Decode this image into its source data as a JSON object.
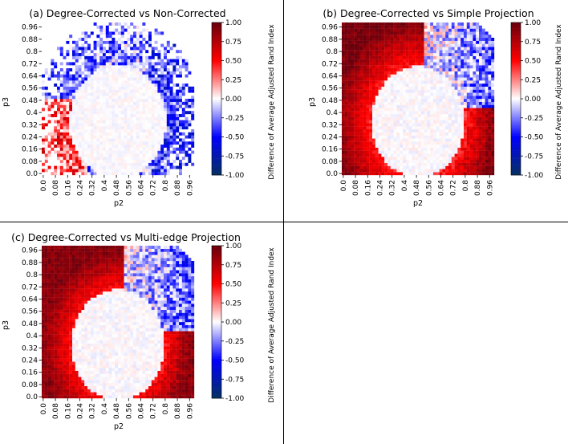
{
  "colors": {
    "cmap": [
      "#053061",
      "#0000ff",
      "#ffffff",
      "#ff0000",
      "#67000d"
    ],
    "axis": "#000000",
    "divider": "#000000"
  },
  "chart_data": [
    {
      "type": "heatmap",
      "title": "(a) Degree-Corrected vs Non-Corrected",
      "xlabel": "p2",
      "ylabel": "p3",
      "colorbar_label": "Difference of Average Adjusted Rand Index",
      "x_ticks": [
        "0.0",
        "0.08",
        "0.16",
        "0.24",
        "0.32",
        "0.4",
        "0.48",
        "0.56",
        "0.64",
        "0.72",
        "0.8",
        "0.88",
        "0.96"
      ],
      "y_ticks": [
        "0.0",
        "0.08",
        "0.16",
        "0.24",
        "0.32",
        "0.4",
        "0.48",
        "0.56",
        "0.64",
        "0.72",
        "0.8",
        "0.88",
        "0.96"
      ],
      "colorbar_ticks": [
        "1.00",
        "0.75",
        "0.50",
        "0.25",
        "0.00",
        "-0.25",
        "-0.50",
        "-0.75",
        "-1.00"
      ],
      "vlim": [
        -1.0,
        1.0
      ],
      "grid_size": 50,
      "p_range": [
        0.0,
        1.0
      ],
      "pattern": {
        "circle_center": [
          0.5,
          0.35
        ],
        "circle_radius": 0.32,
        "region_outside_circle": [
          0.0,
          1.0
        ],
        "ring_values": [
          {
            "side": "left",
            "value": 0.35
          },
          {
            "side": "top",
            "value": -0.3
          },
          {
            "side": "right",
            "value": -0.4
          }
        ],
        "noise": 0.35
      }
    },
    {
      "type": "heatmap",
      "title": "(b) Degree-Corrected vs Simple Projection",
      "xlabel": "p2",
      "ylabel": "p3",
      "colorbar_label": "Difference of Average Adjusted Rand Index",
      "x_ticks": [
        "0.0",
        "0.08",
        "0.16",
        "0.24",
        "0.32",
        "0.4",
        "0.48",
        "0.56",
        "0.64",
        "0.72",
        "0.8",
        "0.88",
        "0.96"
      ],
      "y_ticks": [
        "0.0",
        "0.08",
        "0.16",
        "0.24",
        "0.32",
        "0.4",
        "0.48",
        "0.56",
        "0.64",
        "0.72",
        "0.8",
        "0.88",
        "0.96"
      ],
      "colorbar_ticks": [
        "1.00",
        "0.75",
        "0.50",
        "0.25",
        "0.00",
        "-0.25",
        "-0.50",
        "-0.75",
        "-1.00"
      ],
      "vlim": [
        -1.0,
        1.0
      ],
      "grid_size": 50,
      "p_range": [
        0.0,
        1.0
      ],
      "pattern": {
        "circle_center": [
          0.5,
          0.35
        ],
        "circle_radius": 0.32,
        "region_outside_circle": [
          0.0,
          1.0
        ],
        "corner_value": 0.95,
        "ring_value": 0.5,
        "upper_right_value": -0.3,
        "noise": 0.3
      }
    },
    {
      "type": "heatmap",
      "title": "(c) Degree-Corrected vs Multi-edge Projection",
      "xlabel": "p2",
      "ylabel": "p3",
      "colorbar_label": "Difference of Average Adjusted Rand Index",
      "x_ticks": [
        "0.0",
        "0.08",
        "0.16",
        "0.24",
        "0.32",
        "0.4",
        "0.48",
        "0.56",
        "0.64",
        "0.72",
        "0.8",
        "0.88",
        "0.96"
      ],
      "y_ticks": [
        "0.0",
        "0.08",
        "0.16",
        "0.24",
        "0.32",
        "0.4",
        "0.48",
        "0.56",
        "0.64",
        "0.72",
        "0.8",
        "0.88",
        "0.96"
      ],
      "colorbar_ticks": [
        "1.00",
        "0.75",
        "0.50",
        "0.25",
        "0.00",
        "-0.25",
        "-0.50",
        "-0.75",
        "-1.00"
      ],
      "vlim": [
        -1.0,
        1.0
      ],
      "grid_size": 50,
      "p_range": [
        0.0,
        1.0
      ],
      "pattern": {
        "circle_center": [
          0.5,
          0.35
        ],
        "circle_radius": 0.32,
        "region_outside_circle": [
          0.0,
          1.0
        ],
        "corner_value": 0.9,
        "ring_value": 0.55,
        "upper_right_value": -0.35,
        "noise": 0.3
      }
    }
  ]
}
